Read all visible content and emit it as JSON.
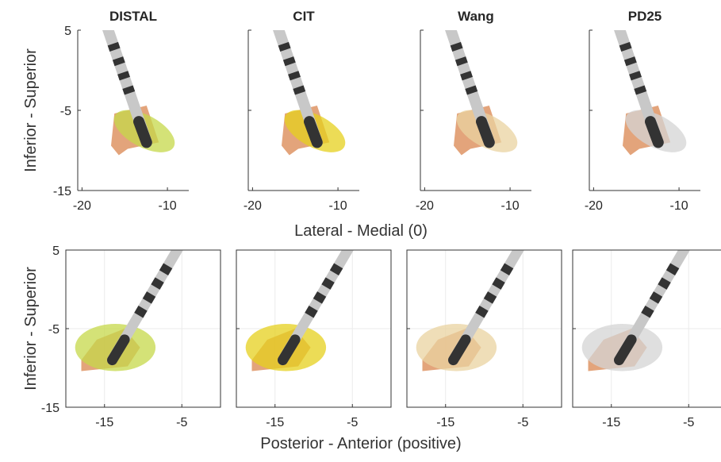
{
  "rows": [
    {
      "panels": [
        {
          "title": "DISTAL",
          "color": "#c5d84a"
        },
        {
          "title": "CIT",
          "color": "#e6d01e"
        },
        {
          "title": "Wang",
          "color": "#ead3a0"
        },
        {
          "title": "PD25",
          "color": "#d4d4d4"
        }
      ],
      "y_label": "Inferior - Superior",
      "x_label": "Lateral - Medial (0)",
      "xlim": [
        -20.5,
        -7.5
      ],
      "xticks": [
        -20,
        -10
      ],
      "ylim": [
        -15,
        5
      ],
      "yticks": [
        -15,
        -5,
        5
      ],
      "grid": false
    },
    {
      "panels": [
        {
          "color": "#c5d84a"
        },
        {
          "color": "#e6d01e"
        },
        {
          "color": "#ead3a0"
        },
        {
          "color": "#d4d4d4"
        }
      ],
      "y_label": "Inferior - Superior",
      "x_label": "Posterior - Anterior (positive)",
      "xlim": [
        -20,
        0
      ],
      "xticks": [
        -15,
        -5
      ],
      "ylim": [
        -15,
        5
      ],
      "yticks": [
        -15,
        -5,
        5
      ],
      "grid": true
    }
  ]
}
